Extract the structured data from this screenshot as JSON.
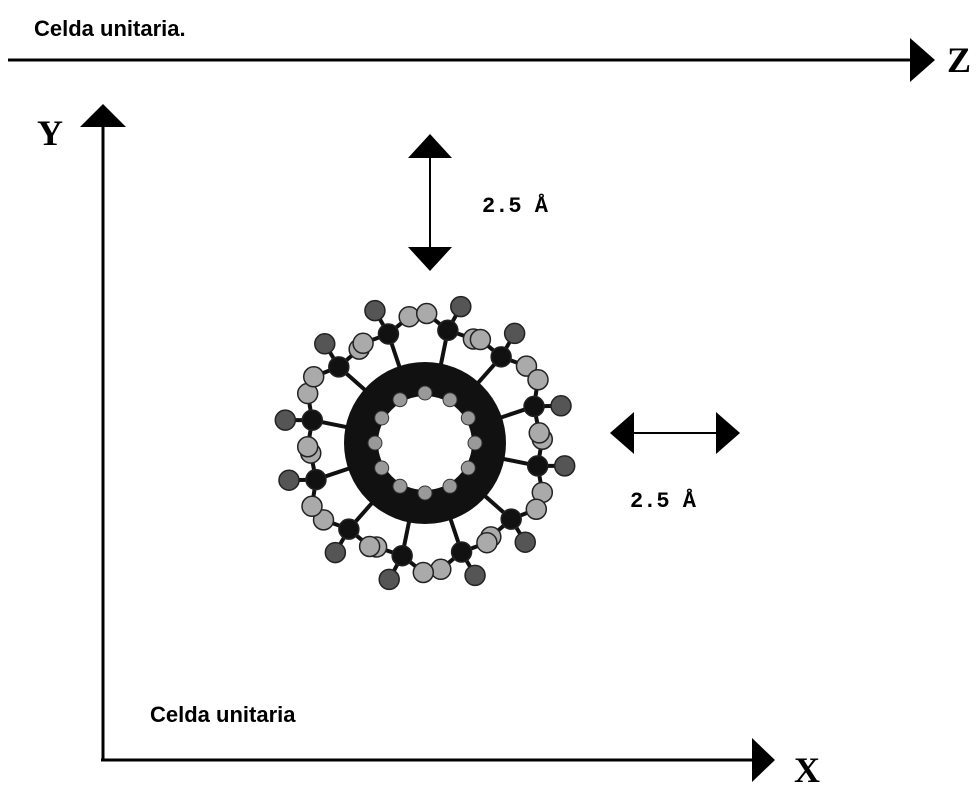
{
  "header": {
    "title": "Celda unitaria."
  },
  "axes": {
    "z": "Z",
    "y": "Y",
    "x": "X"
  },
  "dimensions": [
    {
      "label": "2.5 Å"
    },
    {
      "label": "2.5 Å"
    }
  ],
  "cell_label": "Celda unitaria"
}
